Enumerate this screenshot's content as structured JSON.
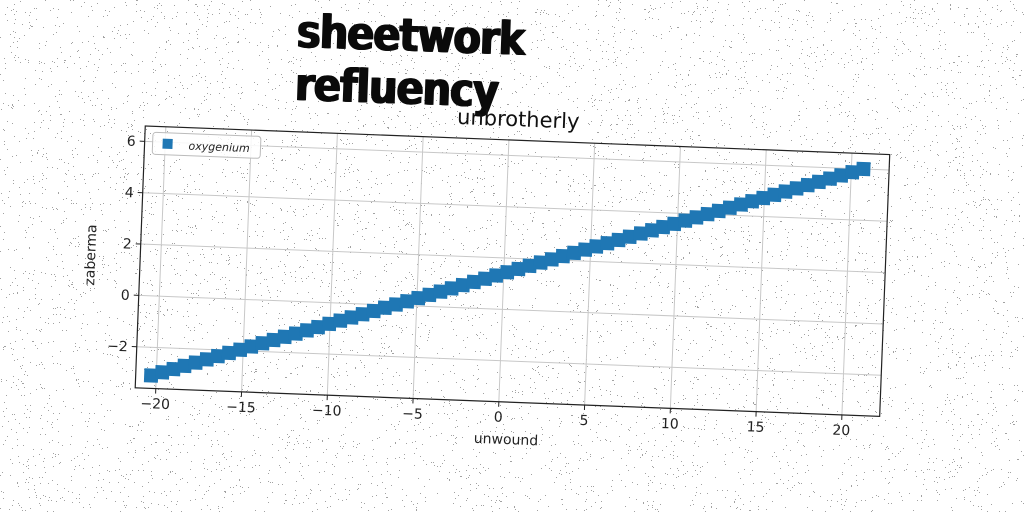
{
  "figure": {
    "suptitle": "sheetwork refluency"
  },
  "chart_data": {
    "type": "scatter",
    "title": "unbrotherly",
    "xlabel": "unwound",
    "ylabel": "zaberma",
    "xlim": [
      -21.2,
      22.2
    ],
    "ylim": [
      -3.6,
      6.6
    ],
    "xticks": [
      -20,
      -15,
      -10,
      -5,
      0,
      5,
      10,
      15,
      20
    ],
    "xtick_labels": [
      "−20",
      "−15",
      "−10",
      "−5",
      "0",
      "5",
      "10",
      "15",
      "20"
    ],
    "yticks": [
      -2,
      0,
      2,
      4,
      6
    ],
    "ytick_labels": [
      "−2",
      "0",
      "2",
      "4",
      "6"
    ],
    "grid": true,
    "legend_position": "top-left",
    "series": [
      {
        "name": "oxygenium",
        "color": "#1f77b4",
        "marker": "square",
        "x_start": -20.3,
        "x_end": 20.7,
        "y_start": -3.1,
        "y_end": 6.0,
        "num_points": 65
      }
    ]
  }
}
